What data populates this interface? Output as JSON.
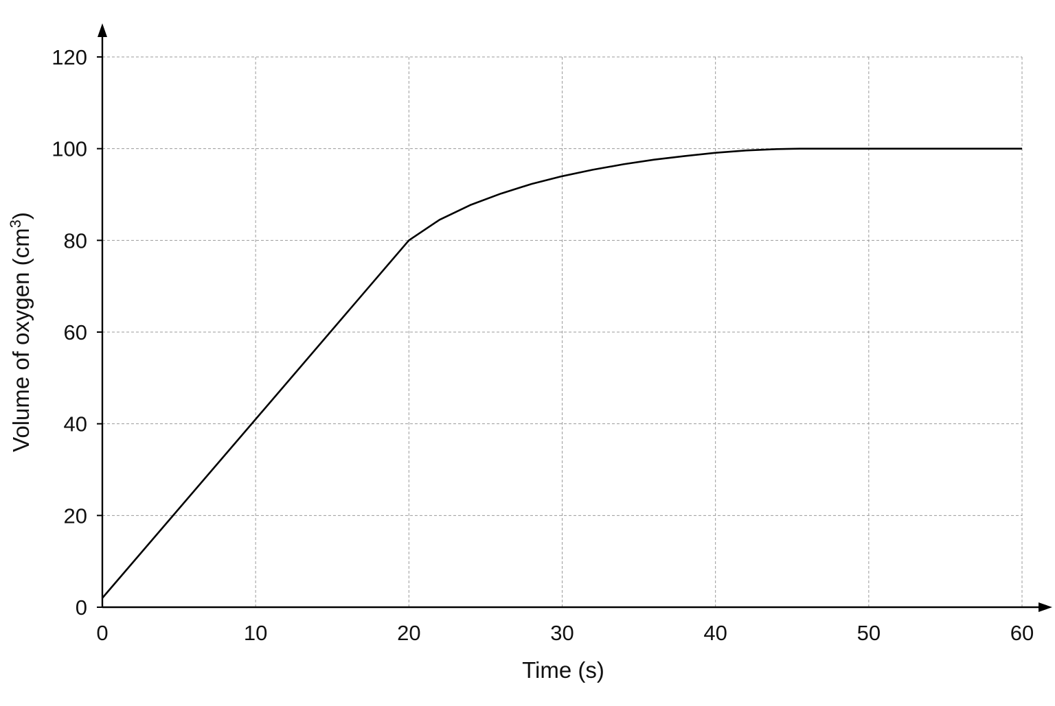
{
  "chart_data": {
    "type": "line",
    "title": "",
    "xlabel": "Time (s)",
    "ylabel_main": "Volume of oxygen (cm",
    "ylabel_sup": "3",
    "ylabel_close": ")",
    "xlim": [
      0,
      60
    ],
    "ylim": [
      0,
      120
    ],
    "grid": true,
    "x_ticks": [
      0,
      10,
      20,
      30,
      40,
      50,
      60
    ],
    "y_ticks": [
      0,
      20,
      40,
      60,
      80,
      100,
      120
    ],
    "x_tick_labels": [
      "0",
      "10",
      "20",
      "30",
      "40",
      "50",
      "60"
    ],
    "y_tick_labels": [
      "0",
      "20",
      "40",
      "60",
      "80",
      "100",
      "120"
    ],
    "series": [
      {
        "x": [
          0,
          10,
          20,
          22,
          24,
          26,
          28,
          30,
          32,
          34,
          36,
          38,
          40,
          42,
          44,
          45.5,
          48,
          50,
          55,
          60
        ],
        "y": [
          2,
          41,
          80,
          84.5,
          87.7,
          90.2,
          92.3,
          94,
          95.4,
          96.6,
          97.6,
          98.4,
          99.1,
          99.6,
          99.9,
          100,
          100,
          100,
          100,
          100
        ]
      }
    ]
  }
}
